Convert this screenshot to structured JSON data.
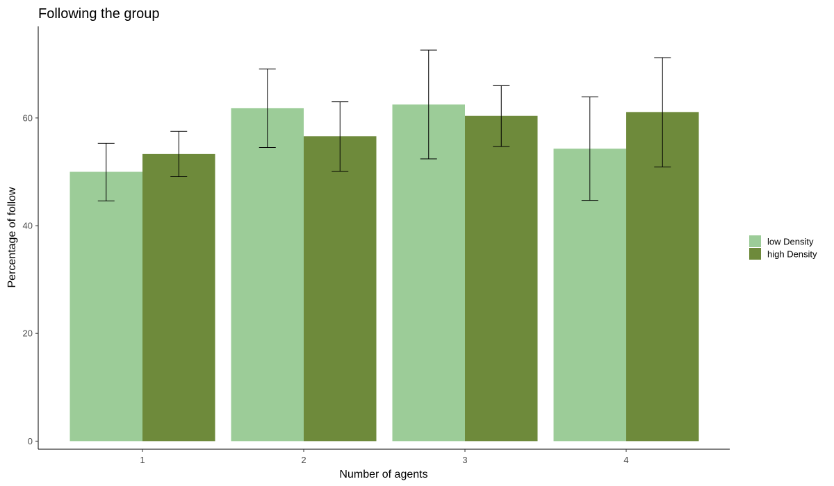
{
  "chart_data": {
    "type": "bar",
    "title": "Following the group",
    "xlabel": "Number of agents",
    "ylabel": "Percentage of follow",
    "categories": [
      "1",
      "2",
      "3",
      "4"
    ],
    "ylim": [
      -1.5,
      77
    ],
    "yticks": [
      0,
      20,
      40,
      60
    ],
    "grid": false,
    "legend_position": "right",
    "series": [
      {
        "name": "low Density",
        "color": "#9ccc98",
        "values": [
          50.0,
          61.8,
          62.5,
          54.3
        ],
        "error_low": [
          44.6,
          54.5,
          52.4,
          44.7
        ],
        "error_high": [
          55.3,
          69.1,
          72.6,
          63.9
        ]
      },
      {
        "name": "high Density",
        "color": "#6e8a3b",
        "values": [
          53.3,
          56.6,
          60.4,
          61.1
        ],
        "error_low": [
          49.1,
          50.1,
          54.7,
          50.9
        ],
        "error_high": [
          57.5,
          63.0,
          66.0,
          71.2
        ]
      }
    ]
  }
}
